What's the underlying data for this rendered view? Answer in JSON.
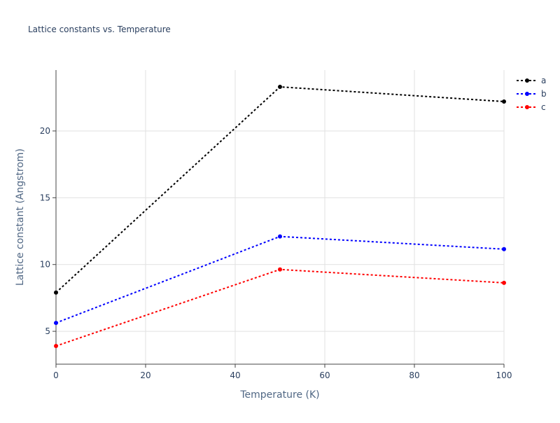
{
  "chart_data": {
    "type": "line",
    "title": "Lattice constants vs. Temperature",
    "x_label": "Temperature (K)",
    "y_label": "Lattice constant (Angstrom)",
    "x": [
      0,
      50,
      100
    ],
    "series": [
      {
        "name": "a",
        "color": "#000000",
        "values": [
          7.9,
          23.3,
          22.2
        ]
      },
      {
        "name": "b",
        "color": "#0000ff",
        "values": [
          5.63,
          12.1,
          11.15
        ]
      },
      {
        "name": "c",
        "color": "#ff0000",
        "values": [
          3.9,
          9.63,
          8.63
        ]
      }
    ],
    "xlim": [
      0,
      100
    ],
    "xticks": [
      0,
      20,
      40,
      60,
      80,
      100
    ],
    "ylim": [
      2.54,
      24.56
    ],
    "yticks": [
      5,
      10,
      15,
      20
    ],
    "grid": true,
    "legend": "top-right",
    "line_style": "dotted",
    "markers": true
  }
}
